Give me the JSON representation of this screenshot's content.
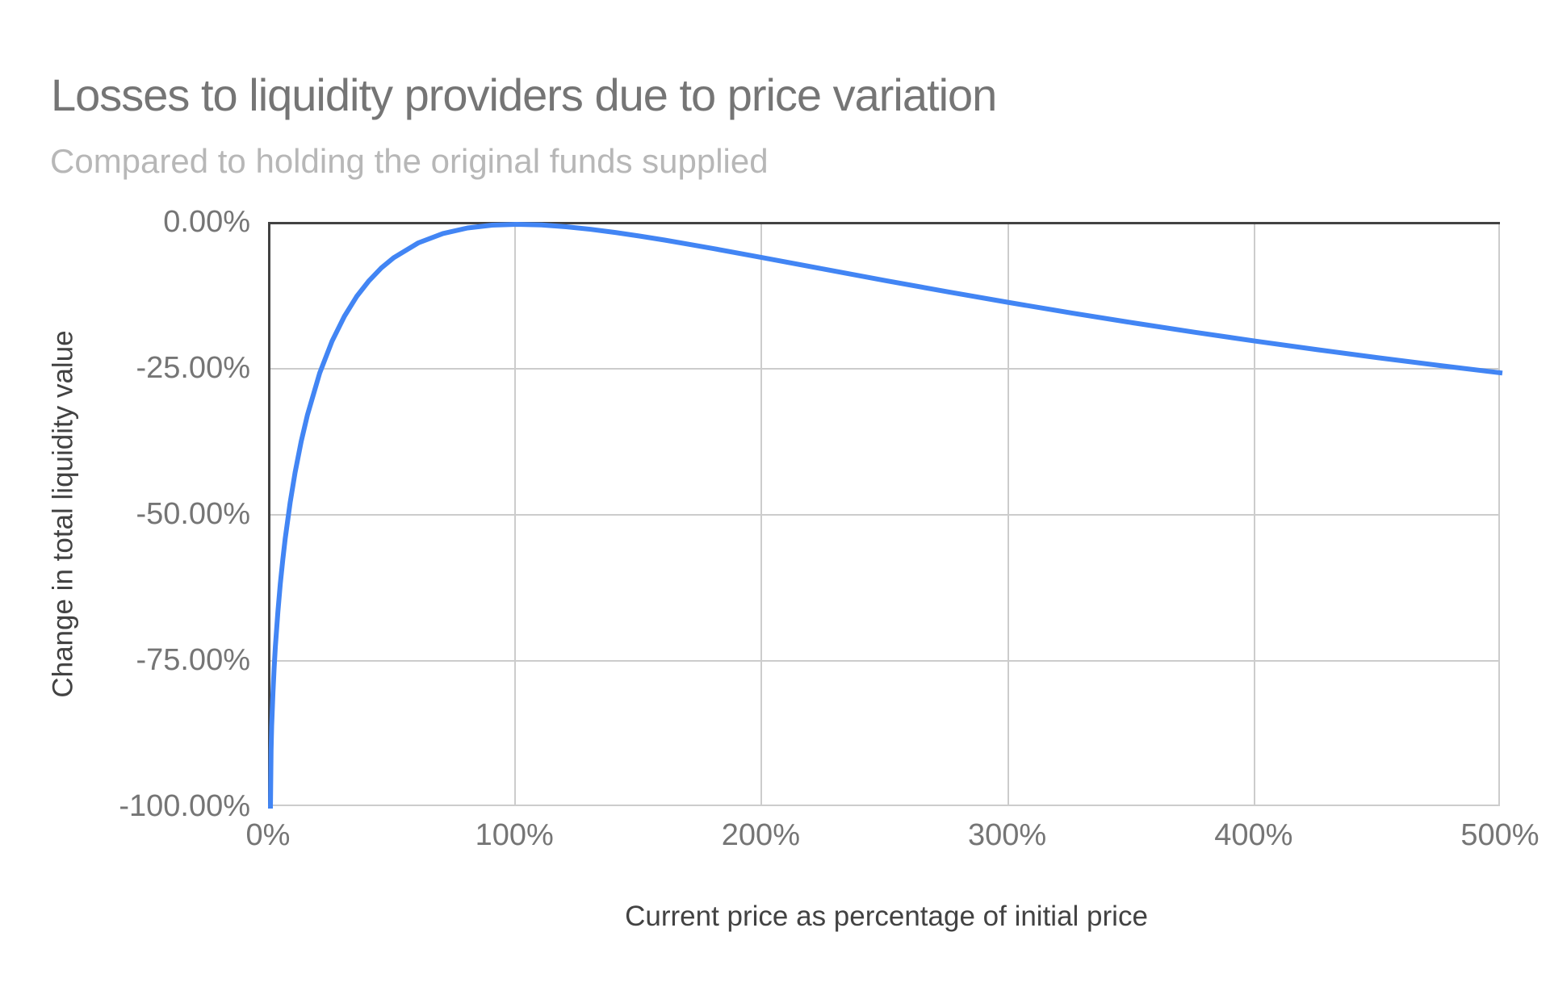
{
  "chart": {
    "title": "Losses to liquidity providers due to price variation",
    "subtitle": "Compared to holding the original funds supplied",
    "x_axis_title": "Current price as percentage of initial price",
    "y_axis_title": "Change in total liquidity value",
    "x_ticks": [
      "0%",
      "100%",
      "200%",
      "300%",
      "400%",
      "500%"
    ],
    "y_ticks": [
      "0.00%",
      "-25.00%",
      "-50.00%",
      "-75.00%",
      "-100.00%"
    ],
    "colors": {
      "line": "#4285f4",
      "title_text": "#757575",
      "subtitle_text": "#b7b7b7",
      "axis_title_text": "#424242",
      "tick_text": "#757575",
      "gridline": "#cccccc",
      "baseline": "#424242",
      "background": "#ffffff"
    }
  },
  "chart_data": {
    "type": "line",
    "title": "Losses to liquidity providers due to price variation",
    "subtitle": "Compared to holding the original funds supplied",
    "xlabel": "Current price as percentage of initial price",
    "ylabel": "Change in total liquidity value",
    "xlim": [
      0,
      500
    ],
    "ylim": [
      -100,
      0
    ],
    "x_tick_values": [
      0,
      100,
      200,
      300,
      400,
      500
    ],
    "y_tick_values": [
      0,
      -25,
      -50,
      -75,
      -100
    ],
    "grid": true,
    "legend": "none",
    "series": [
      {
        "name": "Change in total liquidity value",
        "color": "#4285f4",
        "formula": "y = (2*sqrt(x/100)/(1+x/100) - 1) * 100",
        "points": [
          [
            0,
            -100
          ],
          [
            0.25,
            -90.02
          ],
          [
            0.5,
            -85.93
          ],
          [
            1,
            -80.2
          ],
          [
            1.5,
            -75.87
          ],
          [
            2,
            -72.27
          ],
          [
            3,
            -66.37
          ],
          [
            4,
            -61.54
          ],
          [
            5,
            -57.41
          ],
          [
            6,
            -53.78
          ],
          [
            8,
            -47.62
          ],
          [
            10,
            -42.5
          ],
          [
            12.5,
            -37.15
          ],
          [
            15,
            -32.64
          ],
          [
            20,
            -25.46
          ],
          [
            25,
            -20
          ],
          [
            30,
            -15.74
          ],
          [
            35,
            -12.35
          ],
          [
            40,
            -9.65
          ],
          [
            45,
            -7.47
          ],
          [
            50,
            -5.72
          ],
          [
            60,
            -3.18
          ],
          [
            70,
            -1.57
          ],
          [
            80,
            -0.62
          ],
          [
            90,
            -0.14
          ],
          [
            100,
            0
          ],
          [
            110,
            -0.11
          ],
          [
            120,
            -0.41
          ],
          [
            130,
            -0.85
          ],
          [
            140,
            -1.4
          ],
          [
            150,
            -2.02
          ],
          [
            160,
            -2.7
          ],
          [
            170,
            -3.42
          ],
          [
            180,
            -4.17
          ],
          [
            190,
            -4.94
          ],
          [
            200,
            -5.72
          ],
          [
            225,
            -7.69
          ],
          [
            250,
            -9.65
          ],
          [
            275,
            -11.56
          ],
          [
            300,
            -13.4
          ],
          [
            325,
            -15.16
          ],
          [
            350,
            -16.85
          ],
          [
            375,
            -18.46
          ],
          [
            400,
            -20
          ],
          [
            425,
            -21.47
          ],
          [
            450,
            -22.86
          ],
          [
            475,
            -24.19
          ],
          [
            500,
            -25.46
          ]
        ]
      }
    ]
  }
}
